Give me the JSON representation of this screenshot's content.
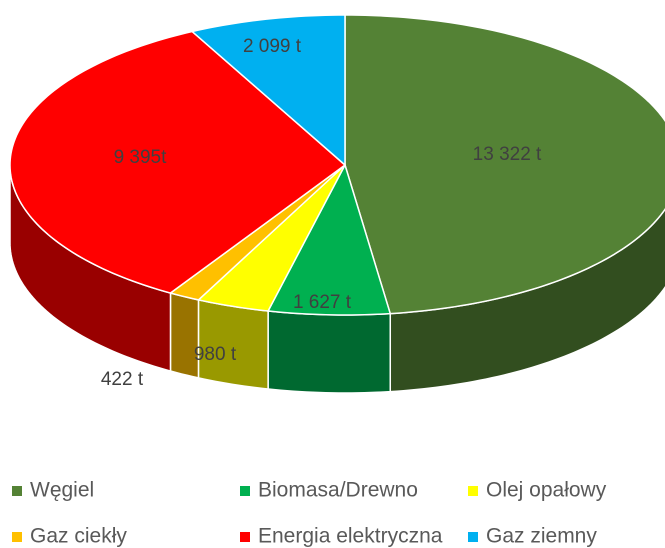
{
  "chart_data": {
    "type": "pie3d",
    "categories": [
      "Węgiel",
      "Biomasa/Drewno",
      "Olej opałowy",
      "Gaz ciekły",
      "Energia elektryczna",
      "Gaz ziemny"
    ],
    "values": [
      13322,
      1627,
      980,
      422,
      9395,
      2099
    ],
    "value_labels": [
      "13 322 t",
      "1 627 t",
      "980 t",
      "422 t",
      "9 395t",
      "2 099 t"
    ],
    "colors": [
      "#548235",
      "#00b050",
      "#ffff00",
      "#ffc000",
      "#ff0000",
      "#00b0f0"
    ],
    "legend": "bottom"
  }
}
